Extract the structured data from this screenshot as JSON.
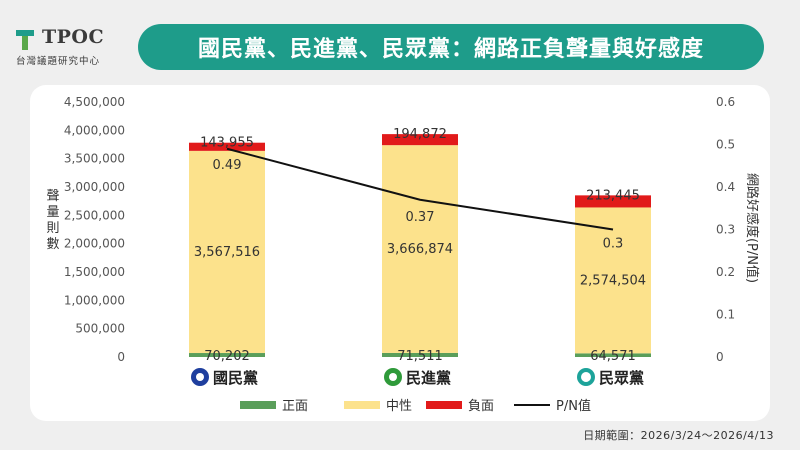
{
  "header": {
    "logo_text": "TPOC",
    "logo_sub": "台灣議題研究中心",
    "title": "國民黨、民進黨、民眾黨：網路正負聲量與好感度"
  },
  "footer": {
    "date_range": "日期範圍：2026/3/24～2026/4/13"
  },
  "colors": {
    "positive": "#5a9e5a",
    "neutral": "#fce28c",
    "negative": "#e11a1a",
    "pn_line": "#111111",
    "title_bar": "#1e9c8a"
  },
  "chart_data": {
    "type": "bar",
    "stacked": true,
    "categories": [
      "國民黨",
      "民進黨",
      "民眾黨"
    ],
    "category_icons": [
      "kmt-emblem-icon",
      "dpp-emblem-icon",
      "tpp-emblem-icon"
    ],
    "series": [
      {
        "name": "正面",
        "values": [
          70202,
          71511,
          64571
        ]
      },
      {
        "name": "中性",
        "values": [
          3567516,
          3666874,
          2574504
        ]
      },
      {
        "name": "負面",
        "values": [
          143955,
          194872,
          213445
        ]
      }
    ],
    "line_series": {
      "name": "P/N值",
      "axis": "right",
      "values": [
        0.49,
        0.37,
        0.3
      ]
    },
    "bar_labels": [
      [
        "70,202",
        "3,567,516",
        "143,955"
      ],
      [
        "71,511",
        "3,666,874",
        "194,872"
      ],
      [
        "64,571",
        "2,574,504",
        "213,445"
      ]
    ],
    "line_labels": [
      "0.49",
      "0.37",
      "0.3"
    ],
    "ylabel": "聲量則數",
    "y2label": "網路好感度(P/N值)",
    "ylim": [
      0,
      4500000
    ],
    "y2lim": [
      0,
      0.6
    ],
    "yticks": [
      "0",
      "500,000",
      "1,000,000",
      "1,500,000",
      "2,000,000",
      "2,500,000",
      "3,000,000",
      "3,500,000",
      "4,000,000",
      "4,500,000"
    ],
    "y2ticks": [
      "0",
      "0.1",
      "0.2",
      "0.3",
      "0.4",
      "0.5",
      "0.6"
    ],
    "legend_position": "bottom",
    "grid": false
  }
}
